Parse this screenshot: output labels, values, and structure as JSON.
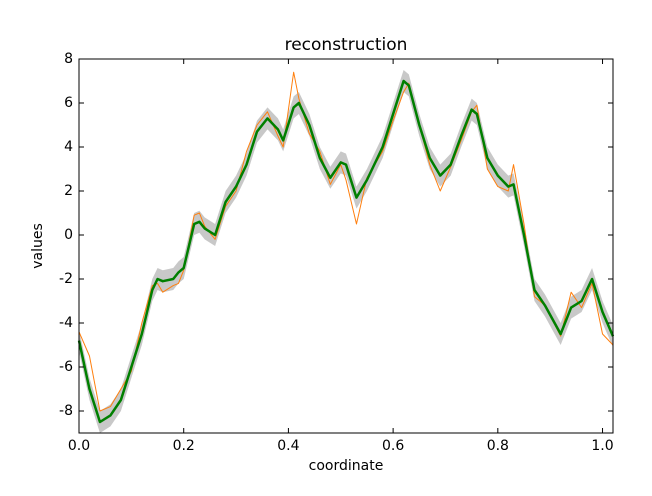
{
  "chart_data": {
    "type": "line",
    "title": "reconstruction",
    "x_label": "coordinate",
    "y_label": "values",
    "x": [
      0,
      0.02,
      0.04,
      0.06,
      0.08,
      0.1,
      0.12,
      0.14,
      0.15,
      0.16,
      0.18,
      0.19,
      0.2,
      0.22,
      0.23,
      0.24,
      0.26,
      0.28,
      0.3,
      0.32,
      0.34,
      0.36,
      0.38,
      0.39,
      0.41,
      0.42,
      0.44,
      0.46,
      0.48,
      0.5,
      0.51,
      0.53,
      0.55,
      0.58,
      0.6,
      0.62,
      0.63,
      0.65,
      0.67,
      0.69,
      0.71,
      0.73,
      0.75,
      0.76,
      0.78,
      0.8,
      0.82,
      0.83,
      0.85,
      0.87,
      0.89,
      0.92,
      0.94,
      0.96,
      0.98,
      1.0,
      1.02
    ],
    "band": {
      "color": "#c8c8c8",
      "lower": [
        -5.3,
        -7.5,
        -9.0,
        -8.7,
        -8.0,
        -6.5,
        -5.0,
        -3.0,
        -2.5,
        -2.6,
        -2.5,
        -2.2,
        -2.0,
        0.0,
        0.1,
        -0.2,
        -0.5,
        1.0,
        1.7,
        2.7,
        4.2,
        4.8,
        4.3,
        3.8,
        5.3,
        5.5,
        4.5,
        3.0,
        2.1,
        2.8,
        2.7,
        1.2,
        2.0,
        3.5,
        5.0,
        6.5,
        6.3,
        4.5,
        3.0,
        2.2,
        2.7,
        4.0,
        5.2,
        5.0,
        3.0,
        2.2,
        1.7,
        1.8,
        -0.5,
        -3.0,
        -3.7,
        -5.0,
        -3.8,
        -3.5,
        -2.5,
        -4.0,
        -5.1
      ],
      "upper": [
        -4.3,
        -6.5,
        -8.0,
        -7.7,
        -7.0,
        -5.5,
        -4.0,
        -2.0,
        -1.5,
        -1.6,
        -1.5,
        -1.2,
        -1.0,
        1.0,
        1.1,
        0.8,
        0.5,
        2.0,
        2.7,
        3.7,
        5.2,
        5.8,
        5.3,
        4.8,
        6.3,
        6.5,
        5.5,
        4.0,
        3.1,
        3.8,
        3.7,
        2.2,
        3.0,
        4.5,
        6.0,
        7.5,
        7.3,
        5.5,
        4.0,
        3.2,
        3.7,
        5.0,
        6.2,
        6.0,
        4.0,
        3.2,
        2.7,
        2.8,
        0.5,
        -2.0,
        -2.7,
        -4.0,
        -2.8,
        -2.5,
        -1.5,
        -3.0,
        -4.1
      ]
    },
    "series": [
      {
        "color": "#ff7f0e",
        "width": 1,
        "values": [
          -4.4,
          -5.5,
          -8.0,
          -7.8,
          -7.0,
          -6.2,
          -4.0,
          -2.3,
          -2.2,
          -2.6,
          -2.3,
          -2.2,
          -1.6,
          0.9,
          1.0,
          0.4,
          -0.2,
          1.3,
          2.0,
          3.8,
          5.0,
          5.6,
          4.5,
          4.0,
          7.4,
          6.2,
          4.6,
          3.8,
          2.3,
          3.2,
          2.5,
          0.5,
          2.6,
          3.8,
          5.2,
          6.5,
          6.9,
          5.0,
          3.2,
          2.0,
          3.1,
          4.3,
          5.6,
          5.9,
          3.0,
          2.2,
          2.0,
          3.2,
          0.5,
          -2.8,
          -3.2,
          -4.6,
          -2.6,
          -3.3,
          -2.2,
          -4.5,
          -5.0
        ]
      },
      {
        "color": "#007f00",
        "width": 2.5,
        "values": [
          -4.8,
          -7.0,
          -8.5,
          -8.2,
          -7.5,
          -6.0,
          -4.5,
          -2.5,
          -2.0,
          -2.1,
          -2.0,
          -1.7,
          -1.5,
          0.5,
          0.6,
          0.3,
          0.0,
          1.5,
          2.2,
          3.2,
          4.7,
          5.3,
          4.8,
          4.3,
          5.8,
          6.0,
          5.0,
          3.5,
          2.6,
          3.3,
          3.2,
          1.7,
          2.5,
          4.0,
          5.5,
          7.0,
          6.8,
          5.0,
          3.5,
          2.7,
          3.2,
          4.5,
          5.7,
          5.5,
          3.5,
          2.7,
          2.2,
          2.3,
          0.0,
          -2.5,
          -3.2,
          -4.5,
          -3.3,
          -3.0,
          -2.0,
          -3.5,
          -4.6
        ]
      }
    ],
    "xlim": [
      0,
      1.02
    ],
    "ylim": [
      -9,
      8
    ],
    "xticks": [
      {
        "value": 0,
        "label": "0.0"
      },
      0.2,
      0.4,
      0.6,
      0.8,
      {
        "value": 1,
        "label": "1.0"
      }
    ],
    "yticks": [
      -8,
      -6,
      -4,
      -2,
      0,
      2,
      4,
      6,
      8
    ]
  }
}
